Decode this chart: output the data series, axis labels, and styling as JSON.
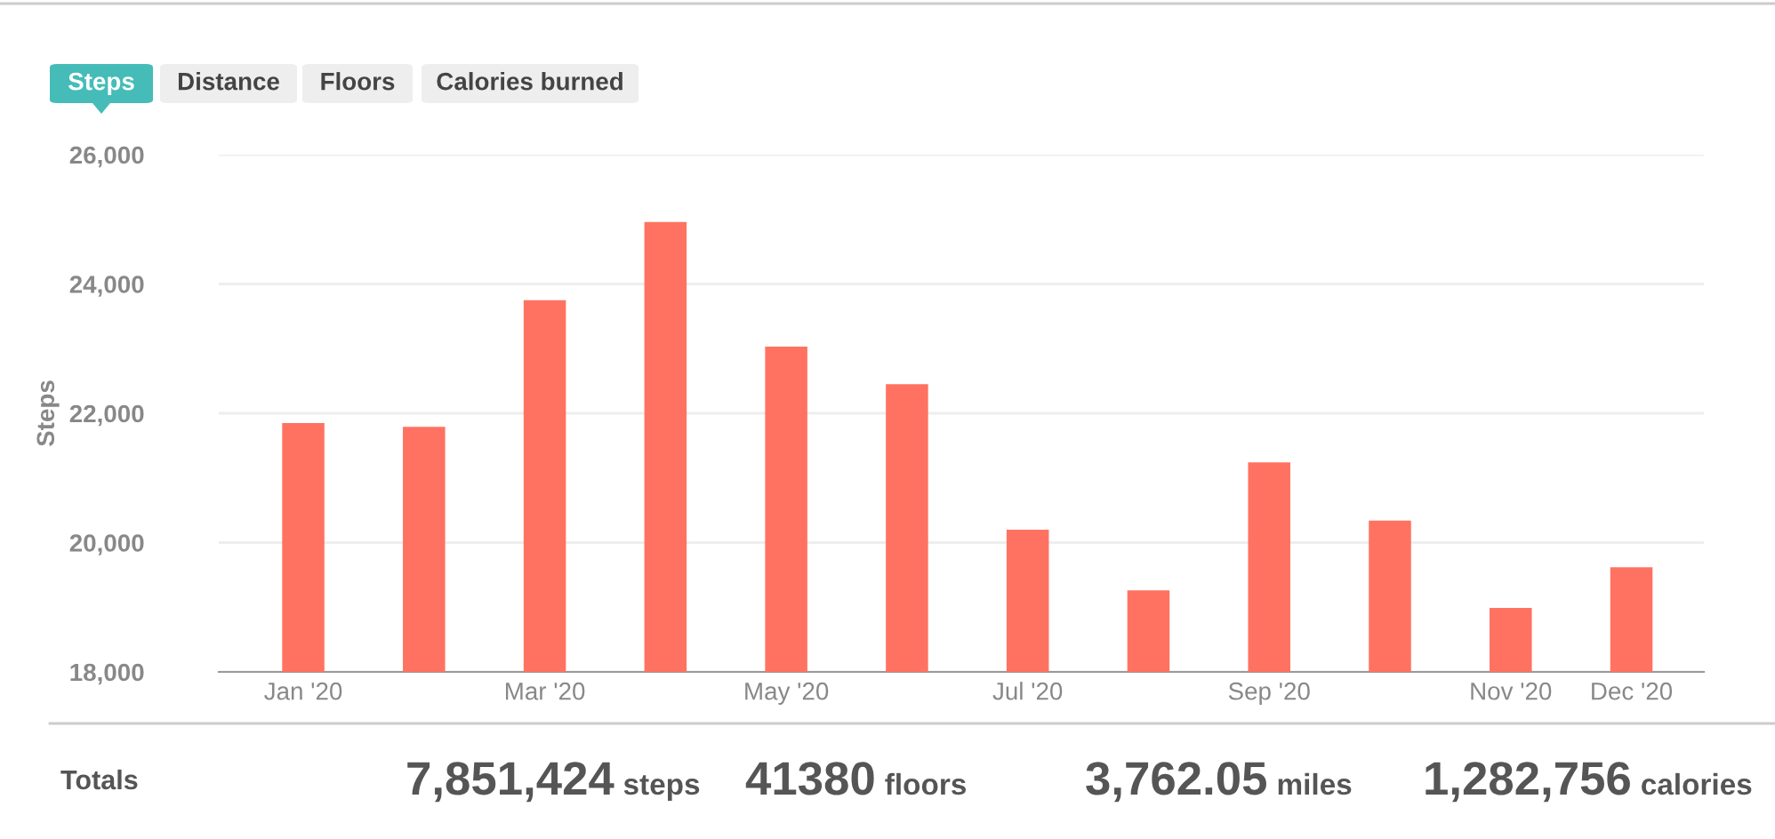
{
  "chart_data": {
    "type": "bar",
    "ylabel": "Steps",
    "categories": [
      "Jan '20",
      null,
      "Mar '20",
      null,
      "May '20",
      null,
      "Jul '20",
      null,
      "Sep '20",
      null,
      "Nov '20",
      "Dec '20"
    ],
    "values": [
      21850,
      21790,
      23750,
      24960,
      23030,
      22450,
      20200,
      19260,
      21240,
      20340,
      18990,
      19620
    ],
    "color": "#ff7261",
    "ylim": [
      18000,
      26000
    ],
    "yticks": [
      {
        "value": 18000,
        "label": "18,000"
      },
      {
        "value": 20000,
        "label": "20,000"
      },
      {
        "value": 22000,
        "label": "22,000"
      },
      {
        "value": 24000,
        "label": "24,000"
      },
      {
        "value": 26000,
        "label": "26,000"
      }
    ],
    "grid": "y",
    "annotations": [
      "Steps",
      "Distance",
      "Floors",
      "Calories burned",
      "Totals",
      "7,851,424 steps",
      "41380 floors",
      "3,762.05 miles",
      "1,282,756 calories"
    ]
  }
}
